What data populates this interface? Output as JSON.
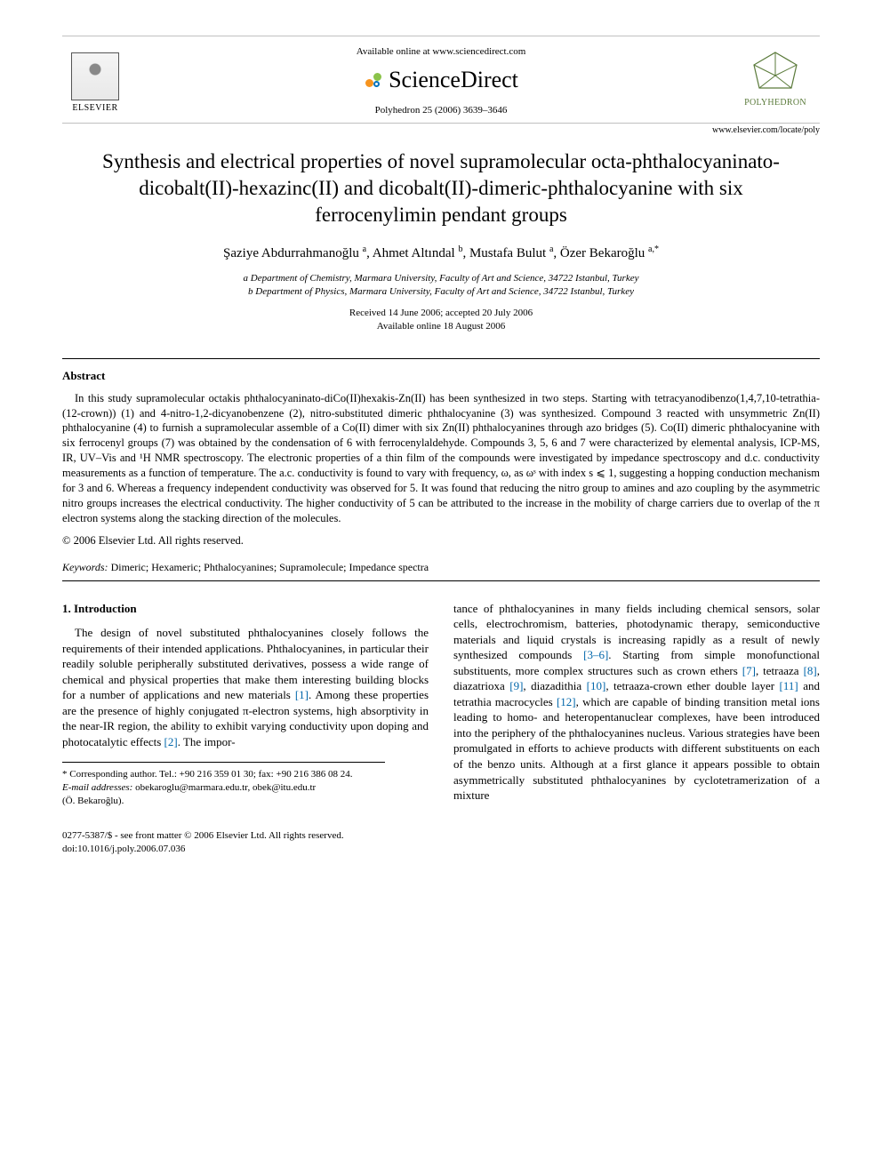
{
  "header": {
    "available_line": "Available online at www.sciencedirect.com",
    "sciencedirect": "ScienceDirect",
    "citation": "Polyhedron 25 (2006) 3639–3646",
    "elsevier_label": "ELSEVIER",
    "polyhedron_label": "POLYHEDRON",
    "journal_url": "www.elsevier.com/locate/poly",
    "colors": {
      "sd_orange": "#f7941e",
      "sd_green": "#8bc34a",
      "sd_blue": "#0072bc",
      "poly_green": "#5a7a3a"
    }
  },
  "title": "Synthesis and electrical properties of novel supramolecular octa-phthalocyaninato-dicobalt(II)-hexazinc(II) and dicobalt(II)-dimeric-phthalocyanine with six ferrocenylimin pendant groups",
  "authors_html": "Şaziye Abdurrahmanoğlu <sup>a</sup>, Ahmet Altındal <sup>b</sup>, Mustafa Bulut <sup>a</sup>, Özer Bekaroğlu <sup>a,*</sup>",
  "affiliations": {
    "a": "a Department of Chemistry, Marmara University, Faculty of Art and Science, 34722 Istanbul, Turkey",
    "b": "b Department of Physics, Marmara University, Faculty of Art and Science, 34722 Istanbul, Turkey"
  },
  "dates": {
    "received_accepted": "Received 14 June 2006; accepted 20 July 2006",
    "online": "Available online 18 August 2006"
  },
  "abstract": {
    "heading": "Abstract",
    "body": "In this study supramolecular octakis phthalocyaninato-diCo(II)hexakis-Zn(II) has been synthesized in two steps. Starting with tetracyanodibenzo(1,4,7,10-tetrathia-(12-crown)) (1) and 4-nitro-1,2-dicyanobenzene (2), nitro-substituted dimeric phthalocyanine (3) was synthesized. Compound 3 reacted with unsymmetric Zn(II) phthalocyanine (4) to furnish a supramolecular assemble of a Co(II) dimer with six Zn(II) phthalocyanines through azo bridges (5). Co(II) dimeric phthalocyanine with six ferrocenyl groups (7) was obtained by the condensation of 6 with ferrocenylaldehyde. Compounds 3, 5, 6 and 7 were characterized by elemental analysis, ICP-MS, IR, UV–Vis and ¹H NMR spectroscopy. The electronic properties of a thin film of the compounds were investigated by impedance spectroscopy and d.c. conductivity measurements as a function of temperature. The a.c. conductivity is found to vary with frequency, ω, as ωˢ with index s ⩽ 1, suggesting a hopping conduction mechanism for 3 and 6. Whereas a frequency independent conductivity was observed for 5. It was found that reducing the nitro group to amines and azo coupling by the asymmetric nitro groups increases the electrical conductivity. The higher conductivity of 5 can be attributed to the increase in the mobility of charge carriers due to overlap of the π electron systems along the stacking direction of the molecules.",
    "copyright": "© 2006 Elsevier Ltd. All rights reserved."
  },
  "keywords": {
    "label": "Keywords:",
    "list": "Dimeric; Hexameric; Phthalocyanines; Supramolecule; Impedance spectra"
  },
  "introduction": {
    "heading": "1. Introduction",
    "para1": "The design of novel substituted phthalocyanines closely follows the requirements of their intended applications. Phthalocyanines, in particular their readily soluble peripherally substituted derivatives, possess a wide range of chemical and physical properties that make them interesting building blocks for a number of applications and new materials [1]. Among these properties are the presence of highly conjugated π-electron systems, high absorptivity in the near-IR region, the ability to exhibit varying conductivity upon doping and photocatalytic effects [2]. The impor-",
    "para2": "tance of phthalocyanines in many fields including chemical sensors, solar cells, electrochromism, batteries, photodynamic therapy, semiconductive materials and liquid crystals is increasing rapidly as a result of newly synthesized compounds [3–6]. Starting from simple monofunctional substituents, more complex structures such as crown ethers [7], tetraaza [8], diazatrioxa [9], diazadithia [10], tetraaza-crown ether double layer [11] and tetrathia macrocycles [12], which are capable of binding transition metal ions leading to homo- and heteropentanuclear complexes, have been introduced into the periphery of the phthalocyanines nucleus. Various strategies have been promulgated in efforts to achieve products with different substituents on each of the benzo units. Although at a first glance it appears possible to obtain asymmetrically substituted phthalocyanines by cyclotetramerization of a mixture"
  },
  "footnote": {
    "corr": "* Corresponding author. Tel.: +90 216 359 01 30; fax: +90 216 386 08 24.",
    "email_label": "E-mail addresses:",
    "emails": "obekaroglu@marmara.edu.tr, obek@itu.edu.tr",
    "author_paren": "(Ö. Bekaroğlu)."
  },
  "footer": {
    "issn": "0277-5387/$ - see front matter © 2006 Elsevier Ltd. All rights reserved.",
    "doi": "doi:10.1016/j.poly.2006.07.036"
  },
  "refs": [
    "[1]",
    "[2]",
    "[3–6]",
    "[7]",
    "[8]",
    "[9]",
    "[10]",
    "[11]",
    "[12]"
  ]
}
